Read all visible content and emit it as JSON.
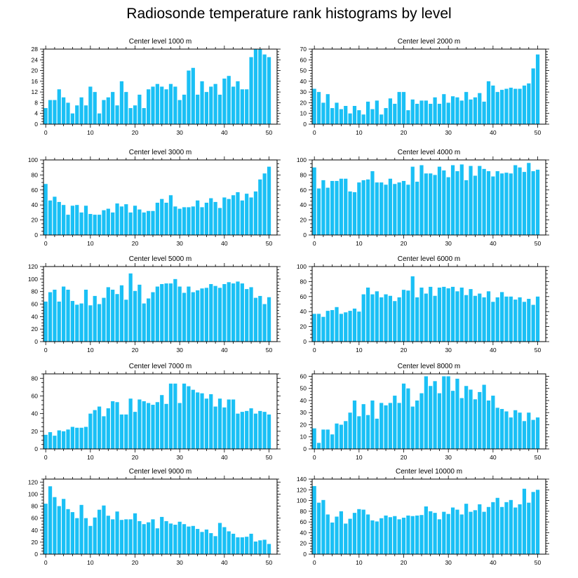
{
  "figure": {
    "title": "Radiosonde temperature rank histograms by level"
  },
  "chart_data": [
    {
      "type": "bar",
      "title": "Center level 1000 m",
      "ylim": [
        0,
        28
      ],
      "yticks": [
        0,
        4,
        8,
        12,
        16,
        20,
        24,
        28
      ],
      "xticks": [
        0,
        10,
        20,
        30,
        40,
        50
      ],
      "values": [
        6,
        9,
        9,
        13,
        10,
        8,
        4,
        7,
        10,
        7,
        14,
        12,
        4,
        9,
        10,
        12,
        7,
        16,
        12,
        6,
        7,
        11,
        6,
        13,
        14,
        15,
        14,
        13,
        15,
        14,
        9,
        11,
        20,
        21,
        11,
        16,
        12,
        14,
        15,
        11,
        17,
        18,
        14,
        16,
        13,
        13,
        25,
        28,
        28,
        26,
        25
      ]
    },
    {
      "type": "bar",
      "title": "Center level 2000 m",
      "ylim": [
        0,
        70
      ],
      "yticks": [
        0,
        10,
        20,
        30,
        40,
        50,
        60,
        70
      ],
      "xticks": [
        0,
        10,
        20,
        30,
        40,
        50
      ],
      "values": [
        33,
        30,
        20,
        28,
        15,
        20,
        14,
        17,
        10,
        17,
        13,
        9,
        21,
        14,
        22,
        9,
        15,
        24,
        19,
        30,
        30,
        13,
        23,
        19,
        22,
        22,
        19,
        25,
        19,
        28,
        20,
        26,
        25,
        22,
        30,
        23,
        25,
        29,
        21,
        40,
        36,
        30,
        32,
        33,
        34,
        33,
        33,
        36,
        38,
        52,
        65
      ]
    },
    {
      "type": "bar",
      "title": "Center level 3000 m",
      "ylim": [
        0,
        100
      ],
      "yticks": [
        0,
        20,
        40,
        60,
        80,
        100
      ],
      "xticks": [
        0,
        10,
        20,
        30,
        40,
        50
      ],
      "values": [
        68,
        46,
        51,
        44,
        40,
        27,
        39,
        40,
        30,
        39,
        28,
        27,
        27,
        33,
        35,
        30,
        42,
        38,
        41,
        30,
        39,
        34,
        30,
        32,
        32,
        43,
        48,
        43,
        53,
        38,
        35,
        37,
        37,
        38,
        46,
        37,
        43,
        49,
        44,
        36,
        50,
        48,
        53,
        57,
        46,
        55,
        50,
        58,
        74,
        82,
        91
      ]
    },
    {
      "type": "bar",
      "title": "Center level 4000 m",
      "ylim": [
        0,
        100
      ],
      "yticks": [
        0,
        20,
        40,
        60,
        80,
        100
      ],
      "xticks": [
        0,
        10,
        20,
        30,
        40,
        50
      ],
      "values": [
        90,
        62,
        73,
        63,
        72,
        72,
        75,
        75,
        58,
        57,
        70,
        73,
        74,
        85,
        70,
        70,
        67,
        75,
        68,
        70,
        72,
        67,
        91,
        71,
        93,
        82,
        82,
        80,
        91,
        86,
        77,
        93,
        85,
        94,
        73,
        92,
        79,
        92,
        88,
        85,
        78,
        85,
        82,
        83,
        82,
        93,
        90,
        84,
        96,
        85,
        87
      ]
    },
    {
      "type": "bar",
      "title": "Center level 5000 m",
      "ylim": [
        0,
        120
      ],
      "yticks": [
        0,
        20,
        40,
        60,
        80,
        100,
        120
      ],
      "xticks": [
        0,
        10,
        20,
        30,
        40,
        50
      ],
      "values": [
        64,
        79,
        83,
        64,
        88,
        83,
        65,
        59,
        61,
        83,
        58,
        73,
        60,
        70,
        87,
        83,
        76,
        90,
        67,
        109,
        81,
        91,
        61,
        69,
        79,
        88,
        92,
        93,
        93,
        100,
        88,
        78,
        88,
        79,
        82,
        85,
        86,
        92,
        89,
        86,
        92,
        95,
        93,
        96,
        93,
        84,
        87,
        70,
        73,
        60,
        71
      ]
    },
    {
      "type": "bar",
      "title": "Center level 6000 m",
      "ylim": [
        0,
        100
      ],
      "yticks": [
        0,
        20,
        40,
        60,
        80,
        100
      ],
      "xticks": [
        0,
        10,
        20,
        30,
        40,
        50
      ],
      "values": [
        37,
        37,
        33,
        41,
        42,
        46,
        37,
        39,
        41,
        44,
        40,
        63,
        72,
        63,
        67,
        59,
        63,
        61,
        54,
        59,
        69,
        68,
        87,
        59,
        72,
        64,
        73,
        61,
        72,
        73,
        71,
        73,
        67,
        72,
        62,
        70,
        61,
        64,
        59,
        67,
        53,
        59,
        66,
        60,
        60,
        56,
        59,
        53,
        57,
        49,
        60
      ]
    },
    {
      "type": "bar",
      "title": "Center level 7000 m",
      "ylim": [
        0,
        85
      ],
      "yticks": [
        0,
        20,
        40,
        60,
        80
      ],
      "xticks": [
        0,
        10,
        20,
        30,
        40,
        50
      ],
      "values": [
        16,
        19,
        15,
        21,
        20,
        22,
        25,
        24,
        24,
        25,
        40,
        44,
        48,
        37,
        46,
        54,
        53,
        39,
        39,
        57,
        42,
        56,
        54,
        52,
        50,
        53,
        61,
        51,
        74,
        74,
        52,
        74,
        71,
        67,
        64,
        63,
        57,
        62,
        48,
        57,
        47,
        56,
        56,
        40,
        42,
        43,
        46,
        40,
        43,
        42,
        39
      ]
    },
    {
      "type": "bar",
      "title": "Center level 8000 m",
      "ylim": [
        0,
        62
      ],
      "yticks": [
        0,
        10,
        20,
        30,
        40,
        50,
        60
      ],
      "xticks": [
        0,
        10,
        20,
        30,
        40,
        50
      ],
      "values": [
        17,
        5,
        16,
        16,
        12,
        21,
        20,
        23,
        30,
        40,
        27,
        37,
        28,
        40,
        25,
        38,
        36,
        38,
        44,
        38,
        54,
        50,
        35,
        40,
        46,
        60,
        52,
        56,
        46,
        60,
        60,
        48,
        58,
        42,
        52,
        49,
        41,
        47,
        53,
        40,
        44,
        34,
        33,
        31,
        26,
        32,
        30,
        23,
        30,
        24,
        26
      ]
    },
    {
      "type": "bar",
      "title": "Center level 9000 m",
      "ylim": [
        0,
        125
      ],
      "yticks": [
        0,
        20,
        40,
        60,
        80,
        100,
        120
      ],
      "xticks": [
        0,
        10,
        20,
        30,
        40,
        50
      ],
      "values": [
        84,
        113,
        95,
        80,
        92,
        75,
        70,
        60,
        82,
        60,
        47,
        61,
        74,
        81,
        64,
        58,
        71,
        57,
        58,
        58,
        68,
        55,
        50,
        53,
        58,
        43,
        62,
        55,
        51,
        49,
        54,
        50,
        46,
        47,
        42,
        37,
        41,
        35,
        30,
        52,
        45,
        38,
        34,
        28,
        28,
        29,
        34,
        21,
        23,
        24,
        17
      ]
    },
    {
      "type": "bar",
      "title": "Center level 10000 m",
      "ylim": [
        0,
        140
      ],
      "yticks": [
        0,
        20,
        40,
        60,
        80,
        100,
        120,
        140
      ],
      "xticks": [
        0,
        10,
        20,
        30,
        40,
        50
      ],
      "values": [
        127,
        96,
        101,
        74,
        59,
        70,
        80,
        57,
        66,
        77,
        84,
        83,
        74,
        63,
        61,
        67,
        72,
        69,
        71,
        65,
        68,
        72,
        71,
        72,
        73,
        89,
        80,
        77,
        65,
        79,
        75,
        87,
        83,
        74,
        94,
        79,
        82,
        93,
        79,
        88,
        97,
        105,
        88,
        97,
        101,
        87,
        93,
        122,
        96,
        116,
        120
      ]
    }
  ]
}
